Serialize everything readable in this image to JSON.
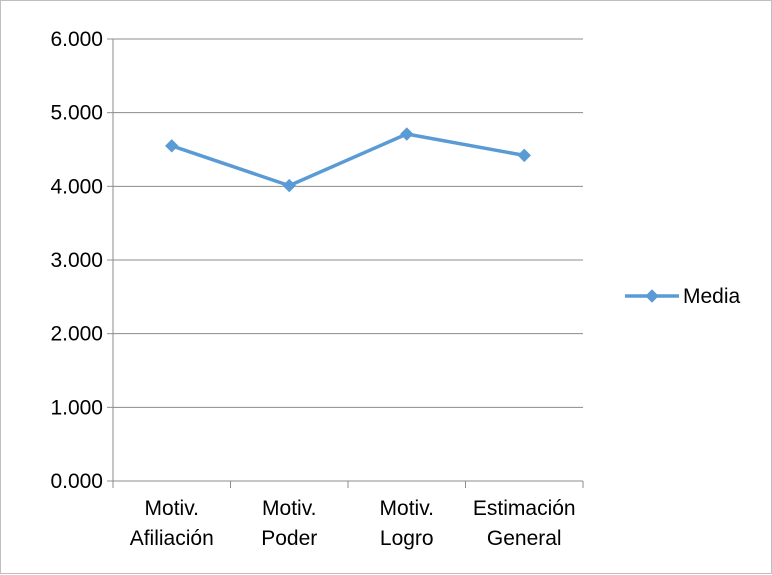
{
  "chart_data": {
    "type": "line",
    "title": "",
    "xlabel": "",
    "ylabel": "",
    "categories": [
      [
        "Motiv.",
        "Afiliación"
      ],
      [
        "Motiv.",
        "Poder"
      ],
      [
        "Motiv.",
        "Logro"
      ],
      [
        "Estimación",
        "General"
      ]
    ],
    "series": [
      {
        "name": "Media",
        "values": [
          4.55,
          4.01,
          4.71,
          4.42
        ],
        "color": "#5b9bd5",
        "marker": "diamond"
      }
    ],
    "ylim": [
      0,
      6
    ],
    "yticks": [
      0,
      1,
      2,
      3,
      4,
      5,
      6
    ],
    "ytick_labels": [
      "0.000",
      "1.000",
      "2.000",
      "3.000",
      "4.000",
      "5.000",
      "6.000"
    ],
    "grid": true,
    "legend": "right"
  }
}
